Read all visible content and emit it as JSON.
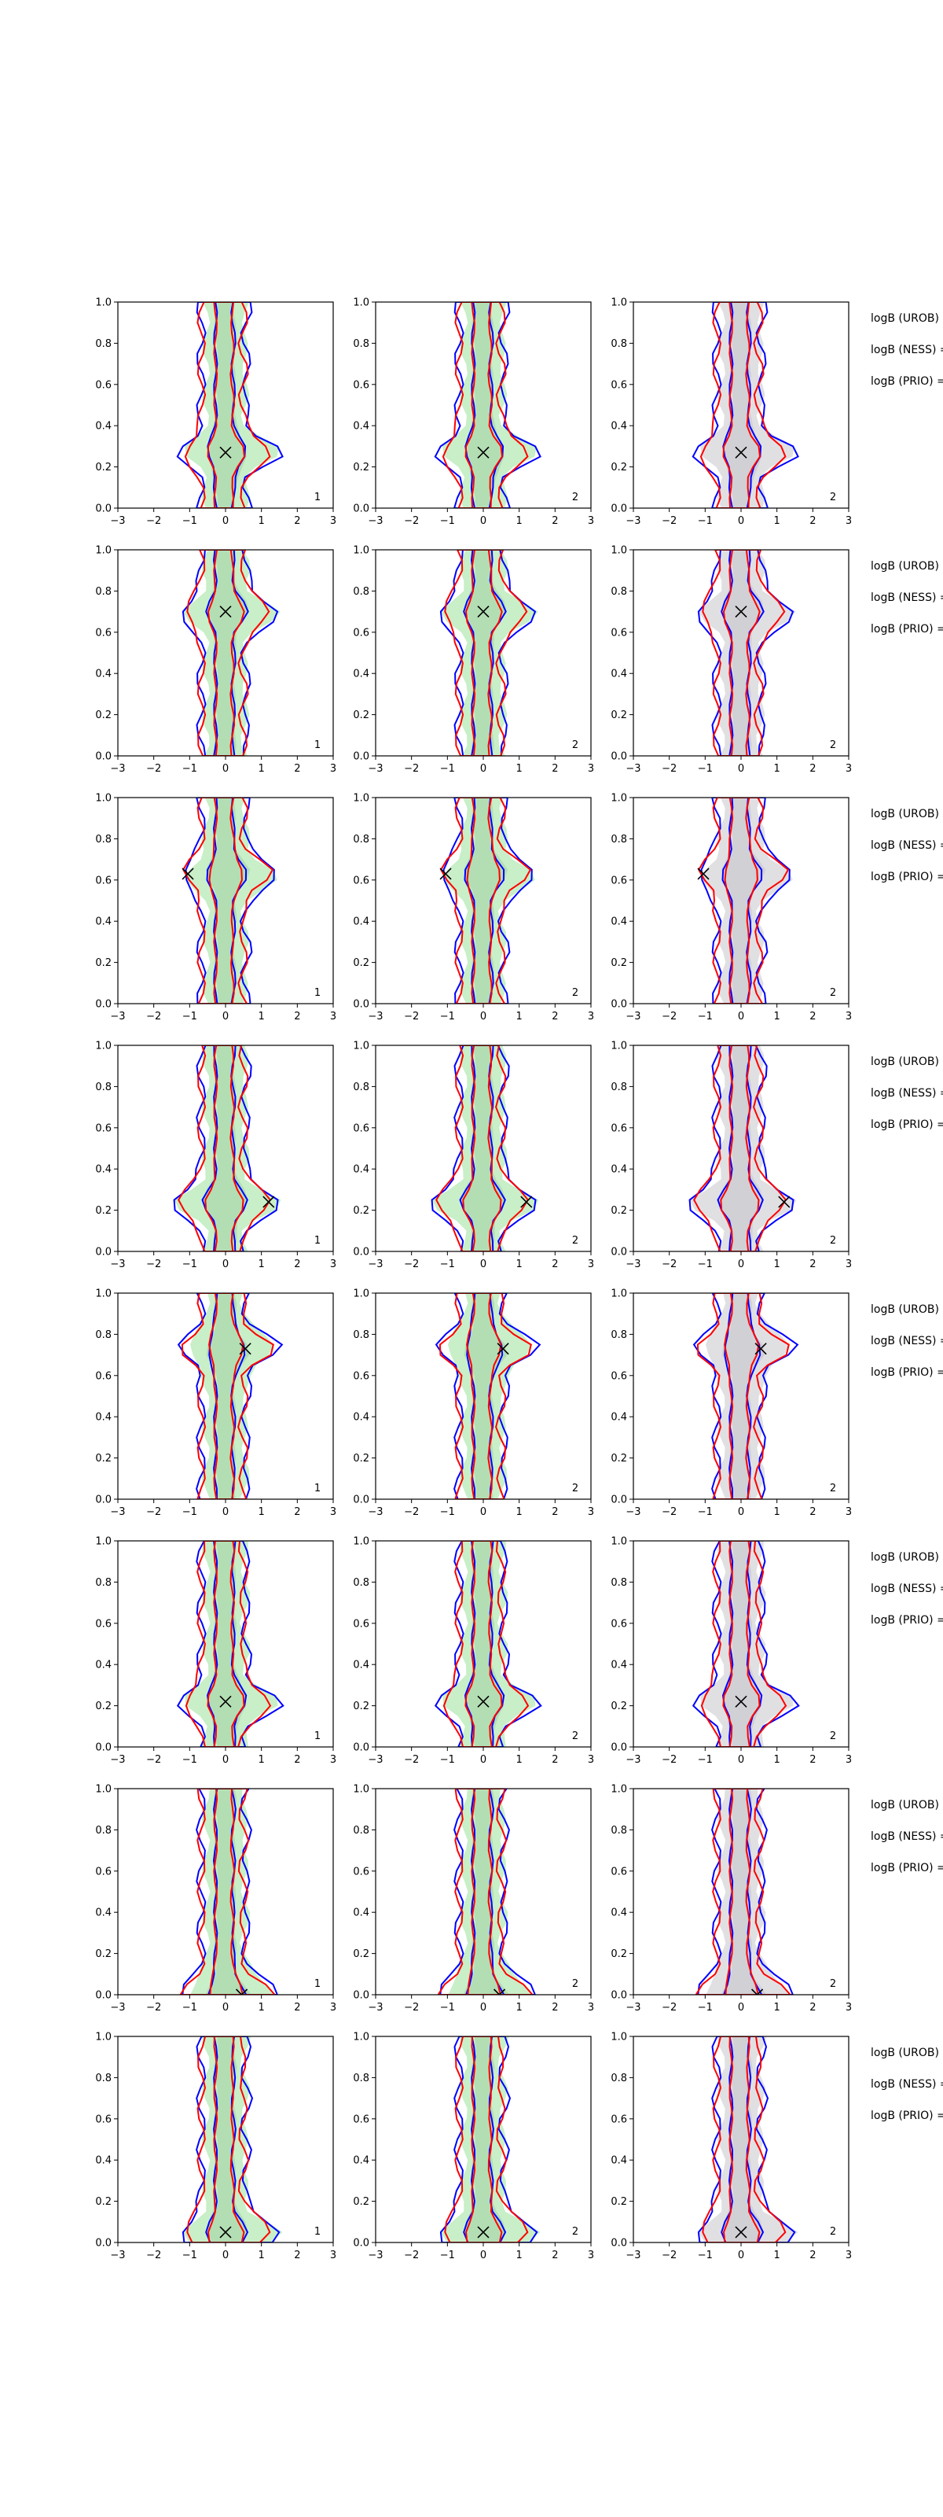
{
  "chart_data": {
    "type": "density-contour-grid",
    "rows": 8,
    "columns": 3,
    "x_ticks": [
      -3,
      -2,
      -1,
      0,
      1,
      2,
      3
    ],
    "y_ticks": [
      0.0,
      0.2,
      0.4,
      0.6,
      0.8,
      1.0
    ],
    "xlim": [
      -3,
      3
    ],
    "ylim": [
      0,
      1
    ],
    "x_tick_labels": [
      "−3",
      "−2",
      "−1",
      "0",
      "1",
      "2",
      "3"
    ],
    "y_tick_labels": [
      "0.0",
      "0.2",
      "0.4",
      "0.6",
      "0.8",
      "1.0"
    ],
    "column_fill": [
      "green",
      "green",
      "grey"
    ],
    "column_labels": [
      "1",
      "2",
      "2"
    ],
    "markers": [
      {
        "x": 0.0,
        "y": 0.27
      },
      {
        "x": 0.0,
        "y": 0.7
      },
      {
        "x": -1.05,
        "y": 0.63
      },
      {
        "x": 1.2,
        "y": 0.24
      },
      {
        "x": 0.55,
        "y": 0.73
      },
      {
        "x": 0.0,
        "y": 0.22
      },
      {
        "x": 0.45,
        "y": 0.0
      },
      {
        "x": 0.0,
        "y": 0.05
      }
    ],
    "side_text": [
      "logB (UROB) =",
      "logB (NESS) =",
      "logB (PRIO) ="
    ],
    "colors": {
      "blue": "#0000ff",
      "red": "#ff0000",
      "green_fill": "#c8efc8",
      "grey_fill": "#e0e0e3"
    }
  }
}
